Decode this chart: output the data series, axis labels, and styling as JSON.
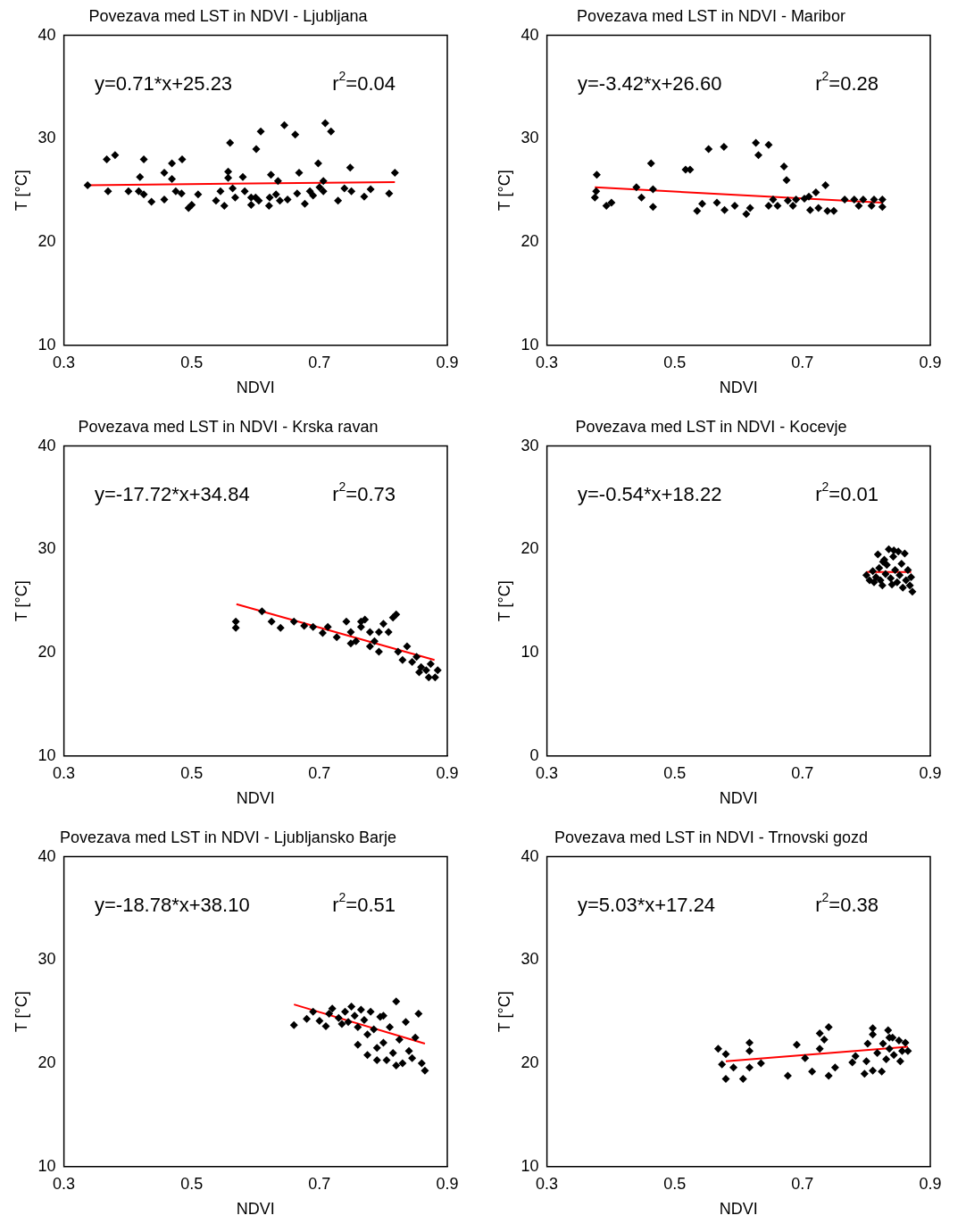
{
  "chart_data": [
    {
      "type": "scatter",
      "title": "Povezava med LST in NDVI - Ljubljana",
      "xlabel": "NDVI",
      "ylabel": "T [°C]",
      "xlim": [
        0.3,
        0.9
      ],
      "xticks": [
        0.3,
        0.5,
        0.7,
        0.9
      ],
      "ylim": [
        10,
        40
      ],
      "yticks": [
        10,
        20,
        30,
        40
      ],
      "grid": false,
      "legend": false,
      "marker": "diamond",
      "annotations": [
        "y=0.71*x+25.23",
        "r$^{2}$=0.04"
      ],
      "series": [
        {
          "type": "scatter",
          "color": "#000000",
          "x": [
            0.337,
            0.367,
            0.38,
            0.369,
            0.401,
            0.417,
            0.419,
            0.425,
            0.425,
            0.437,
            0.457,
            0.457,
            0.469,
            0.469,
            0.475,
            0.485,
            0.484,
            0.495,
            0.5,
            0.51,
            0.538,
            0.545,
            0.551,
            0.56,
            0.557,
            0.557,
            0.564,
            0.568,
            0.58,
            0.583,
            0.593,
            0.593,
            0.601,
            0.6,
            0.608,
            0.605,
            0.621,
            0.622,
            0.624,
            0.632,
            0.635,
            0.638,
            0.645,
            0.65,
            0.662,
            0.665,
            0.668,
            0.677,
            0.685,
            0.69,
            0.698,
            0.7,
            0.706,
            0.706,
            0.709,
            0.718,
            0.729,
            0.739,
            0.748,
            0.75,
            0.77,
            0.78,
            0.809,
            0.818
          ],
          "values": [
            25.5,
            28.0,
            28.4,
            24.9,
            24.9,
            24.9,
            26.3,
            28.0,
            24.6,
            23.9,
            26.7,
            24.1,
            27.6,
            26.1,
            24.9,
            28.0,
            24.7,
            23.3,
            23.6,
            24.6,
            24.0,
            24.9,
            23.5,
            29.6,
            26.8,
            26.2,
            25.2,
            24.3,
            26.3,
            24.9,
            24.3,
            23.6,
            29.0,
            24.3,
            30.7,
            24.0,
            23.5,
            24.3,
            26.5,
            24.6,
            25.9,
            24.0,
            31.3,
            24.1,
            30.4,
            24.7,
            26.7,
            23.7,
            24.9,
            24.5,
            27.6,
            25.3,
            25.9,
            24.9,
            31.5,
            30.7,
            24.0,
            25.2,
            27.2,
            24.9,
            24.4,
            25.1,
            24.7,
            26.7
          ]
        },
        {
          "type": "line",
          "color": "#ff0000",
          "marker": "none",
          "x": [
            0.337,
            0.818
          ],
          "values": [
            25.5,
            25.8
          ]
        }
      ]
    },
    {
      "type": "scatter",
      "title": "Povezava med LST in NDVI - Maribor",
      "xlabel": "NDVI",
      "ylabel": "T [°C]",
      "xlim": [
        0.3,
        0.9
      ],
      "xticks": [
        0.3,
        0.5,
        0.7,
        0.9
      ],
      "ylim": [
        10,
        40
      ],
      "yticks": [
        10,
        20,
        30,
        40
      ],
      "grid": false,
      "legend": false,
      "marker": "diamond",
      "annotations": [
        "y=-3.42*x+26.60",
        "r$^{2}$=0.28"
      ],
      "series": [
        {
          "type": "scatter",
          "color": "#000000",
          "x": [
            0.378,
            0.377,
            0.375,
            0.393,
            0.401,
            0.44,
            0.448,
            0.463,
            0.466,
            0.466,
            0.517,
            0.524,
            0.535,
            0.543,
            0.553,
            0.566,
            0.577,
            0.578,
            0.594,
            0.612,
            0.618,
            0.627,
            0.631,
            0.647,
            0.647,
            0.654,
            0.661,
            0.671,
            0.675,
            0.677,
            0.685,
            0.69,
            0.703,
            0.71,
            0.721,
            0.712,
            0.725,
            0.736,
            0.739,
            0.749,
            0.766,
            0.781,
            0.788,
            0.795,
            0.808,
            0.812,
            0.825,
            0.825
          ],
          "values": [
            26.5,
            24.9,
            24.3,
            23.5,
            23.8,
            25.3,
            24.3,
            27.6,
            25.1,
            23.4,
            27.0,
            27.0,
            23.0,
            23.7,
            29.0,
            23.8,
            29.2,
            23.1,
            23.5,
            22.7,
            23.3,
            29.6,
            28.4,
            29.4,
            23.5,
            24.1,
            23.5,
            27.3,
            26.0,
            24.0,
            23.5,
            24.1,
            24.2,
            24.4,
            24.8,
            23.1,
            23.3,
            25.5,
            23.0,
            23.0,
            24.1,
            24.1,
            23.5,
            24.1,
            23.5,
            24.1,
            24.1,
            23.4
          ]
        },
        {
          "type": "line",
          "color": "#ff0000",
          "marker": "none",
          "x": [
            0.375,
            0.825
          ],
          "values": [
            25.3,
            23.8
          ]
        }
      ]
    },
    {
      "type": "scatter",
      "title": "Povezava med LST in NDVI - Krska ravan",
      "xlabel": "NDVI",
      "ylabel": "T [°C]",
      "xlim": [
        0.3,
        0.9
      ],
      "xticks": [
        0.3,
        0.5,
        0.7,
        0.9
      ],
      "ylim": [
        10,
        40
      ],
      "yticks": [
        10,
        20,
        30,
        40
      ],
      "grid": false,
      "legend": false,
      "marker": "diamond",
      "annotations": [
        "y=-17.72*x+34.84",
        "r$^{2}$=0.73"
      ],
      "series": [
        {
          "type": "scatter",
          "color": "#000000",
          "x": [
            0.569,
            0.569,
            0.61,
            0.625,
            0.639,
            0.66,
            0.676,
            0.69,
            0.705,
            0.713,
            0.727,
            0.742,
            0.749,
            0.757,
            0.765,
            0.771,
            0.779,
            0.786,
            0.793,
            0.8,
            0.808,
            0.815,
            0.82,
            0.823,
            0.83,
            0.837,
            0.845,
            0.852,
            0.859,
            0.867,
            0.874,
            0.881,
            0.885,
            0.871,
            0.856,
            0.793,
            0.779,
            0.765,
            0.749
          ],
          "values": [
            23.0,
            22.4,
            24.0,
            23.0,
            22.4,
            23.0,
            22.6,
            22.5,
            21.9,
            22.5,
            21.5,
            23.0,
            22.0,
            21.1,
            22.5,
            23.2,
            22.0,
            21.1,
            20.1,
            22.8,
            22.0,
            23.4,
            23.7,
            20.1,
            19.3,
            20.6,
            19.1,
            19.6,
            18.6,
            18.3,
            18.9,
            17.6,
            18.3,
            17.6,
            18.1,
            22.0,
            20.6,
            23.0,
            20.9
          ]
        },
        {
          "type": "line",
          "color": "#ff0000",
          "marker": "none",
          "x": [
            0.57,
            0.88
          ],
          "values": [
            24.7,
            19.3
          ]
        }
      ]
    },
    {
      "type": "scatter",
      "title": "Povezava med LST in NDVI - Kocevje",
      "xlabel": "NDVI",
      "ylabel": "T [°C]",
      "xlim": [
        0.3,
        0.9
      ],
      "xticks": [
        0.3,
        0.5,
        0.7,
        0.9
      ],
      "ylim": [
        0,
        30
      ],
      "yticks": [
        0,
        10,
        20,
        30
      ],
      "grid": false,
      "legend": false,
      "marker": "diamond",
      "annotations": [
        "y=-0.54*x+18.22",
        "r$^{2}$=0.01"
      ],
      "series": [
        {
          "type": "scatter",
          "color": "#000000",
          "x": [
            0.8,
            0.805,
            0.81,
            0.812,
            0.815,
            0.82,
            0.822,
            0.825,
            0.828,
            0.83,
            0.832,
            0.835,
            0.838,
            0.84,
            0.842,
            0.845,
            0.848,
            0.85,
            0.852,
            0.855,
            0.857,
            0.86,
            0.862,
            0.865,
            0.868,
            0.87,
            0.872,
            0.818,
            0.826,
            0.843
          ],
          "values": [
            17.5,
            17.0,
            17.9,
            16.8,
            17.3,
            18.2,
            17.0,
            16.5,
            19.0,
            17.6,
            18.5,
            20.0,
            17.2,
            16.6,
            19.3,
            18.0,
            16.8,
            19.8,
            17.5,
            18.6,
            16.3,
            19.6,
            17.0,
            18.0,
            16.5,
            17.3,
            15.9,
            19.5,
            18.8,
            19.9
          ]
        },
        {
          "type": "line",
          "color": "#ff0000",
          "marker": "none",
          "x": [
            0.8,
            0.87
          ],
          "values": [
            17.8,
            17.8
          ]
        }
      ]
    },
    {
      "type": "scatter",
      "title": "Povezava med LST in NDVI - Ljubljansko Barje",
      "xlabel": "NDVI",
      "ylabel": "T [°C]",
      "xlim": [
        0.3,
        0.9
      ],
      "xticks": [
        0.3,
        0.5,
        0.7,
        0.9
      ],
      "ylim": [
        10,
        40
      ],
      "yticks": [
        10,
        20,
        30,
        40
      ],
      "grid": false,
      "legend": false,
      "marker": "diamond",
      "annotations": [
        "y=-18.78*x+38.10",
        "r$^{2}$=0.51"
      ],
      "series": [
        {
          "type": "scatter",
          "color": "#000000",
          "x": [
            0.66,
            0.68,
            0.69,
            0.7,
            0.71,
            0.715,
            0.72,
            0.73,
            0.735,
            0.74,
            0.745,
            0.75,
            0.755,
            0.76,
            0.765,
            0.77,
            0.775,
            0.78,
            0.785,
            0.79,
            0.795,
            0.8,
            0.805,
            0.81,
            0.815,
            0.82,
            0.825,
            0.83,
            0.835,
            0.84,
            0.845,
            0.85,
            0.855,
            0.86,
            0.865,
            0.775,
            0.79,
            0.8,
            0.76,
            0.82
          ],
          "values": [
            23.7,
            24.3,
            25.0,
            24.1,
            23.6,
            24.8,
            25.3,
            24.4,
            23.8,
            25.0,
            24.0,
            25.5,
            24.6,
            23.5,
            25.2,
            24.2,
            22.8,
            25.0,
            23.3,
            21.5,
            24.5,
            22.0,
            20.3,
            23.5,
            21.0,
            26.0,
            22.3,
            20.0,
            24.0,
            21.2,
            20.5,
            22.5,
            24.8,
            20.0,
            19.3,
            20.8,
            20.3,
            24.6,
            21.8,
            19.8
          ]
        },
        {
          "type": "line",
          "color": "#ff0000",
          "marker": "none",
          "x": [
            0.66,
            0.865
          ],
          "values": [
            25.7,
            21.9
          ]
        }
      ]
    },
    {
      "type": "scatter",
      "title": "Povezava med LST in NDVI - Trnovski gozd",
      "xlabel": "NDVI",
      "ylabel": "T [°C]",
      "xlim": [
        0.3,
        0.9
      ],
      "xticks": [
        0.3,
        0.5,
        0.7,
        0.9
      ],
      "ylim": [
        10,
        40
      ],
      "yticks": [
        10,
        20,
        30,
        40
      ],
      "grid": false,
      "legend": false,
      "marker": "diamond",
      "annotations": [
        "y=5.03*x+17.24",
        "r$^{2}$=0.38"
      ],
      "series": [
        {
          "type": "scatter",
          "color": "#000000",
          "x": [
            0.568,
            0.58,
            0.574,
            0.58,
            0.592,
            0.607,
            0.617,
            0.617,
            0.617,
            0.635,
            0.677,
            0.691,
            0.704,
            0.715,
            0.727,
            0.727,
            0.734,
            0.741,
            0.741,
            0.751,
            0.778,
            0.783,
            0.797,
            0.8,
            0.802,
            0.81,
            0.81,
            0.81,
            0.817,
            0.824,
            0.826,
            0.831,
            0.834,
            0.836,
            0.841,
            0.843,
            0.851,
            0.853,
            0.856,
            0.861,
            0.865,
            0.836
          ],
          "values": [
            21.4,
            20.9,
            19.9,
            18.5,
            19.6,
            18.5,
            22.0,
            21.2,
            19.6,
            20.0,
            18.8,
            21.8,
            20.5,
            19.2,
            21.4,
            22.9,
            22.3,
            23.5,
            18.8,
            19.6,
            20.1,
            20.7,
            19.0,
            20.2,
            21.9,
            23.4,
            22.8,
            19.3,
            21.0,
            19.2,
            21.9,
            20.4,
            23.2,
            21.4,
            22.5,
            20.8,
            22.2,
            20.2,
            21.2,
            22.0,
            21.2,
            22.5
          ]
        },
        {
          "type": "line",
          "color": "#ff0000",
          "marker": "none",
          "x": [
            0.58,
            0.865
          ],
          "values": [
            20.2,
            21.6
          ]
        }
      ]
    }
  ]
}
